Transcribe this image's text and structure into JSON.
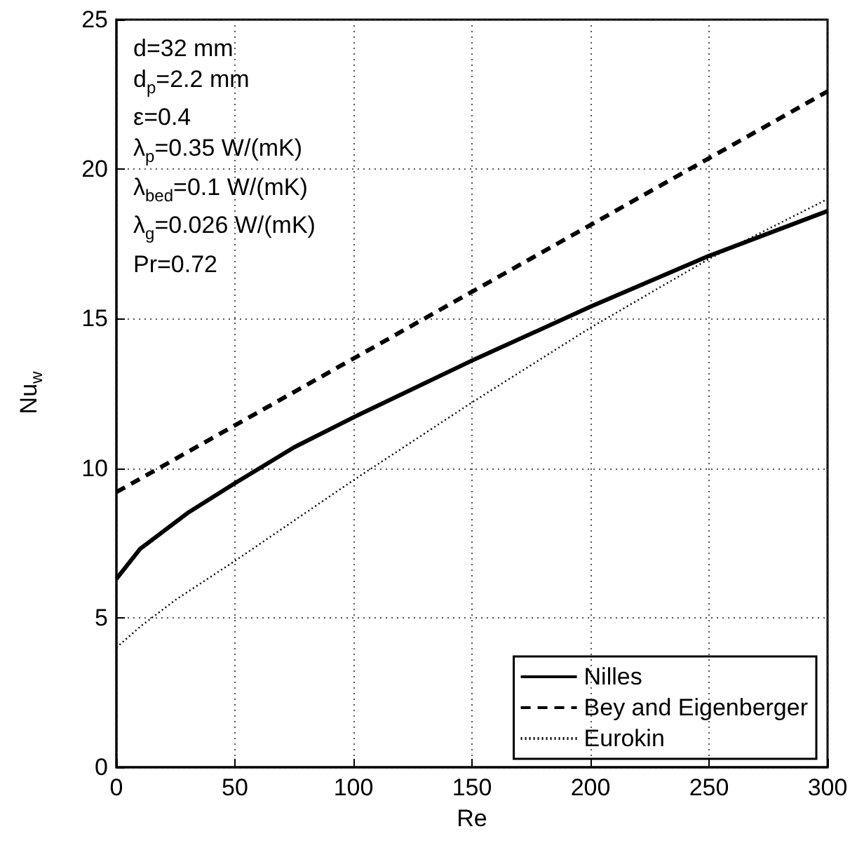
{
  "chart_data": {
    "type": "line",
    "xlabel": "Re",
    "ylabel": "Nu$_{w}$",
    "annotations": [
      "d=32 mm",
      "d$_{p}$=2.2 mm",
      "ε=0.4",
      "λ$_{p}$=0.35 W/(mK)",
      "λ$_{bed}$=0.1 W/(mK)",
      "λ$_{g}$=0.026 W/(mK)",
      "Pr=0.72"
    ],
    "xlim": [
      0,
      300
    ],
    "xticks": [
      0,
      50,
      100,
      150,
      200,
      250,
      300
    ],
    "ylim": [
      0,
      25
    ],
    "yticks": [
      0,
      5,
      10,
      15,
      20,
      25
    ],
    "grid": true,
    "legend": "bottom right",
    "marker": "none",
    "series": [
      {
        "name": "Nilles",
        "color": "#000000",
        "line_style": "solid",
        "x": [
          0,
          10,
          20,
          30,
          50,
          75,
          100,
          150,
          200,
          250,
          300
        ],
        "values": [
          6.3,
          7.3,
          7.9,
          8.5,
          9.5,
          10.7,
          11.7,
          13.6,
          15.4,
          17.1,
          18.6
        ]
      },
      {
        "name": "Bey and Eigenberger",
        "color": "#000000",
        "line_style": "dashed",
        "x": [
          0,
          300
        ],
        "values": [
          9.2,
          22.6
        ]
      },
      {
        "name": "Eurokin",
        "color": "#000000",
        "line_style": "dotted",
        "x": [
          0,
          10,
          25,
          50,
          100,
          150,
          200,
          250,
          300
        ],
        "values": [
          4.0,
          4.7,
          5.6,
          6.9,
          9.6,
          12.2,
          14.7,
          17.0,
          19.0
        ]
      }
    ]
  }
}
